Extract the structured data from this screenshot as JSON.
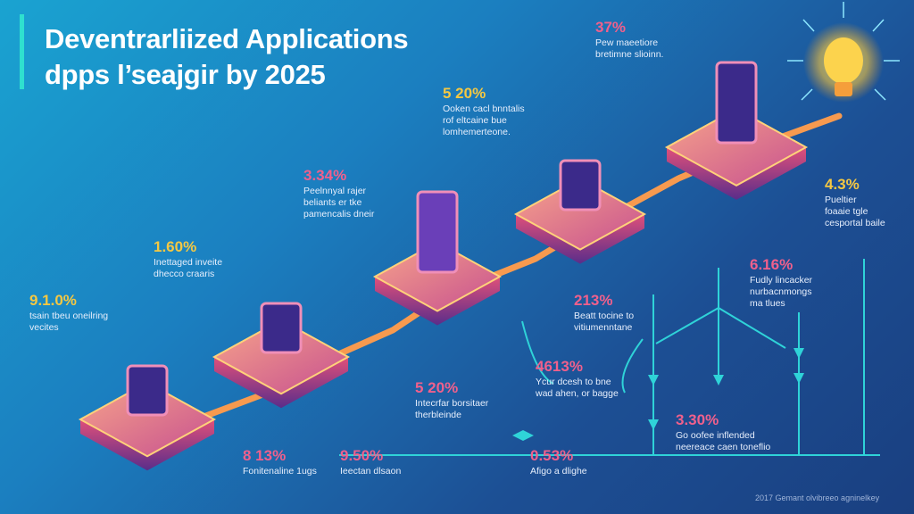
{
  "title": {
    "line1": "Deventrarliized Applications",
    "line2": "dpps l’seajgir by 2025"
  },
  "colors": {
    "accent": "#2fe0cf",
    "yellow": "#f5c842",
    "pink": "#f0608c",
    "background": "#1c4f94"
  },
  "stats": [
    {
      "value": "9.1.0%",
      "color": "yellow",
      "lines": [
        "tsain tbeu oneilring",
        "vecites"
      ]
    },
    {
      "value": "1.60%",
      "color": "yellow",
      "lines": [
        "Inettaged inveite",
        "dhecco craaris"
      ]
    },
    {
      "value": "3.34%",
      "color": "pink",
      "lines": [
        "Peelnnyal rajer",
        "beliants er tke",
        "pamencalis dneir"
      ]
    },
    {
      "value": "5 20%",
      "color": "yellow",
      "lines": [
        "Ooken cacl bnntalis",
        "rof eltcaine bue",
        "lomhemerteone."
      ]
    },
    {
      "value": "37%",
      "color": "pink",
      "lines": [
        "Pew maeetiore",
        "bretimne slioinn."
      ]
    },
    {
      "value": "4.3%",
      "color": "yellow",
      "lines": [
        "Pueltier",
        "foaaie tgle",
        "cesportal baile"
      ]
    },
    {
      "value": "6.16%",
      "color": "pink",
      "lines": [
        "Fudly lincacker",
        "nurbacnmongs",
        "ma tlues"
      ]
    },
    {
      "value": "213%",
      "color": "pink",
      "lines": [
        "Beatt tocine to",
        "vitiumenntane"
      ]
    },
    {
      "value": "4613%",
      "color": "pink",
      "lines": [
        "Ycur dcesh to bne",
        "wad ahen, or bagge"
      ]
    },
    {
      "value": "5 20%",
      "color": "pink",
      "lines": [
        "Intecrfar borsitaer",
        "therbleinde"
      ]
    },
    {
      "value": "3.30%",
      "color": "pink",
      "lines": [
        "Go oofee inflended",
        "neereace caen toneflio"
      ]
    },
    {
      "value": "8 13%",
      "color": "pink",
      "lines": [
        "Fonitenaline 1ugs"
      ]
    },
    {
      "value": "9.50%",
      "color": "pink",
      "lines": [
        "Ieectan dlsaon"
      ]
    },
    {
      "value": "0.53%",
      "color": "pink",
      "lines": [
        "Afigo a dlighe"
      ]
    }
  ],
  "footer": "2017 Gemant olvibreeo agninelkey"
}
